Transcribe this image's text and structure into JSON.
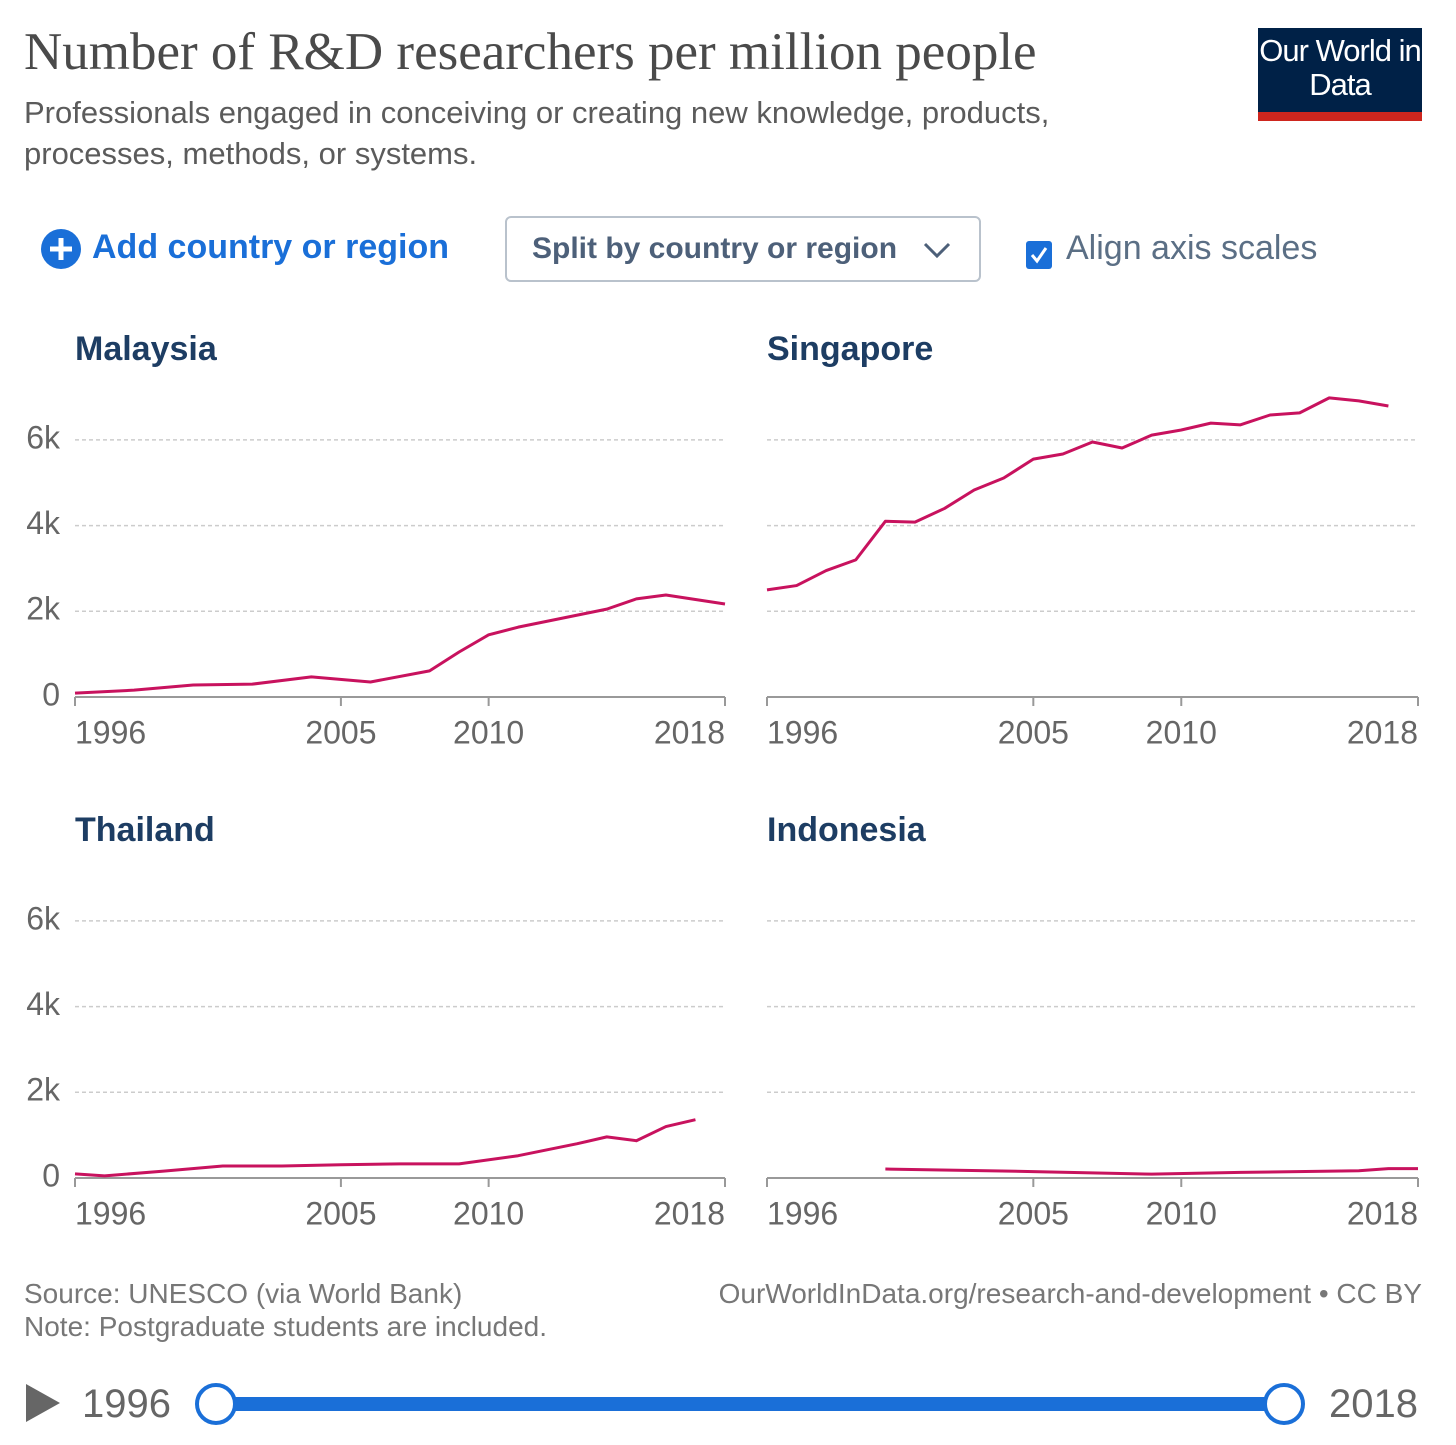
{
  "title": "Number of R&D researchers per million people",
  "subtitle": "Professionals engaged in conceiving or creating new knowledge, products, processes, methods, or systems.",
  "logo": "Our World in Data",
  "controls": {
    "add": "Add country or region",
    "split": "Split by country or region",
    "align": "Align axis scales"
  },
  "chart_data": [
    {
      "type": "line",
      "title": "Malaysia",
      "color": "#c8125e",
      "x": [
        1996,
        1998,
        2000,
        2002,
        2004,
        2006,
        2008,
        2009,
        2010,
        2011,
        2012,
        2014,
        2015,
        2016,
        2018
      ],
      "values": [
        90,
        160,
        280,
        300,
        470,
        350,
        610,
        1050,
        1450,
        1630,
        1770,
        2050,
        2290,
        2380,
        2170
      ],
      "xlim": [
        1996,
        2018
      ],
      "xticks": [
        1996,
        2005,
        2010,
        2018
      ],
      "ylim": [
        0,
        7000
      ],
      "yticks": [
        0,
        {
          "value": 2000,
          "label": "2k"
        },
        {
          "value": 4000,
          "label": "4k"
        },
        {
          "value": 6000,
          "label": "6k"
        }
      ],
      "grid": true
    },
    {
      "type": "line",
      "title": "Singapore",
      "color": "#c8125e",
      "x": [
        1996,
        1997,
        1998,
        1999,
        2000,
        2001,
        2002,
        2003,
        2004,
        2005,
        2006,
        2007,
        2008,
        2009,
        2010,
        2011,
        2012,
        2013,
        2014,
        2015,
        2016,
        2017
      ],
      "values": [
        2500,
        2600,
        2950,
        3200,
        4100,
        4080,
        4400,
        4830,
        5110,
        5550,
        5670,
        5950,
        5810,
        6110,
        6230,
        6390,
        6350,
        6580,
        6630,
        6980,
        6910,
        6790
      ],
      "xlim": [
        1996,
        2018
      ],
      "xticks": [
        1996,
        2005,
        2010,
        2018
      ],
      "ylim": [
        0,
        7000
      ],
      "yticks": [
        0,
        {
          "value": 2000,
          "label": "2k"
        },
        {
          "value": 4000,
          "label": "4k"
        },
        {
          "value": 6000,
          "label": "6k"
        }
      ],
      "grid": true
    },
    {
      "type": "line",
      "title": "Thailand",
      "color": "#c8125e",
      "x": [
        1996,
        1997,
        1999,
        2001,
        2003,
        2005,
        2007,
        2009,
        2011,
        2013,
        2014,
        2015,
        2016,
        2017
      ],
      "values": [
        95,
        50,
        160,
        280,
        280,
        310,
        330,
        330,
        520,
        800,
        960,
        870,
        1200,
        1360
      ],
      "xlim": [
        1996,
        2018
      ],
      "xticks": [
        1996,
        2005,
        2010,
        2018
      ],
      "ylim": [
        0,
        7000
      ],
      "yticks": [
        0,
        {
          "value": 2000,
          "label": "2k"
        },
        {
          "value": 4000,
          "label": "4k"
        },
        {
          "value": 6000,
          "label": "6k"
        }
      ],
      "grid": true
    },
    {
      "type": "line",
      "title": "Indonesia",
      "color": "#c8125e",
      "x": [
        2000,
        2005,
        2009,
        2012,
        2016,
        2017,
        2018
      ],
      "values": [
        210,
        150,
        90,
        130,
        170,
        220,
        220
      ],
      "xlim": [
        1996,
        2018
      ],
      "xticks": [
        1996,
        2005,
        2010,
        2018
      ],
      "ylim": [
        0,
        7000
      ],
      "yticks": [
        0,
        {
          "value": 2000,
          "label": "2k"
        },
        {
          "value": 4000,
          "label": "4k"
        },
        {
          "value": 6000,
          "label": "6k"
        }
      ],
      "grid": true
    }
  ],
  "footer": {
    "source": "Source: UNESCO (via World Bank)",
    "note": "Note: Postgraduate students are included.",
    "url": "OurWorldInData.org/research-and-development • CC BY"
  },
  "timeline": {
    "start": "1996",
    "end": "2018"
  }
}
